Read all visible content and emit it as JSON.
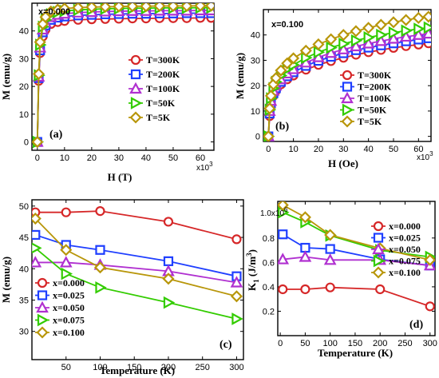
{
  "chart_data": [
    {
      "id": "a",
      "type": "line",
      "panel_label": "(a)",
      "annotation": "x=0.000",
      "xlabel": "H (T)",
      "ylabel": "M (emu/g)",
      "x_multiplier": "x10",
      "x_multiplier_exp": "3",
      "xlim": [
        -2000,
        65000
      ],
      "ylim": [
        -3,
        50
      ],
      "xticks": [
        0,
        10000,
        20000,
        30000,
        40000,
        50000,
        60000
      ],
      "xtick_labels": [
        "0",
        "10",
        "20",
        "30",
        "40",
        "50",
        "60"
      ],
      "yticks": [
        0,
        10,
        20,
        30,
        40
      ],
      "ytick_labels": [
        "0",
        "10",
        "20",
        "30",
        "40"
      ],
      "legend_position": "center-right",
      "series": [
        {
          "name": "T=300K",
          "color": "#d62728",
          "marker": "circle",
          "x": [
            0,
            500,
            1000,
            2000,
            3000,
            5000,
            7500,
            10000,
            15000,
            20000,
            25000,
            30000,
            35000,
            40000,
            45000,
            50000,
            55000,
            60000,
            64000
          ],
          "y": [
            0,
            22,
            32,
            38,
            40.5,
            42.5,
            43.2,
            43.6,
            44.0,
            44.2,
            44.3,
            44.4,
            44.5,
            44.5,
            44.6,
            44.6,
            44.6,
            44.7,
            44.7
          ]
        },
        {
          "name": "T=200K",
          "color": "#1f3fff",
          "marker": "square",
          "x": [
            0,
            500,
            1000,
            2000,
            3000,
            5000,
            7500,
            10000,
            15000,
            20000,
            25000,
            30000,
            35000,
            40000,
            45000,
            50000,
            55000,
            60000,
            64000
          ],
          "y": [
            0,
            23,
            33,
            39.5,
            42,
            44,
            44.8,
            45.2,
            45.6,
            45.8,
            46.0,
            46.1,
            46.2,
            46.2,
            46.3,
            46.3,
            46.4,
            46.4,
            46.4
          ]
        },
        {
          "name": "T=100K",
          "color": "#b030d0",
          "marker": "triangle-up",
          "x": [
            0,
            500,
            1000,
            2000,
            3000,
            5000,
            7500,
            10000,
            15000,
            20000,
            25000,
            30000,
            35000,
            40000,
            45000,
            50000,
            55000,
            60000,
            64000
          ],
          "y": [
            0,
            23.5,
            34,
            40.5,
            43,
            45,
            45.8,
            46.2,
            46.6,
            46.8,
            47.0,
            47.1,
            47.2,
            47.2,
            47.3,
            47.3,
            47.3,
            47.4,
            47.4
          ]
        },
        {
          "name": "T=50K",
          "color": "#33cc00",
          "marker": "triangle-right",
          "x": [
            0,
            500,
            1000,
            2000,
            3000,
            5000,
            7500,
            10000,
            15000,
            20000,
            25000,
            30000,
            35000,
            40000,
            45000,
            50000,
            55000,
            60000,
            64000
          ],
          "y": [
            0,
            24,
            35,
            41.5,
            44,
            46,
            46.8,
            47.2,
            47.6,
            47.8,
            48.0,
            48.1,
            48.2,
            48.2,
            48.3,
            48.3,
            48.3,
            48.4,
            48.4
          ]
        },
        {
          "name": "T=5K",
          "color": "#b8960a",
          "marker": "diamond",
          "x": [
            0,
            500,
            1000,
            2000,
            3000,
            5000,
            7500,
            10000,
            15000,
            20000,
            25000,
            30000,
            35000,
            40000,
            45000,
            50000,
            55000,
            60000,
            64000
          ],
          "y": [
            0,
            24.5,
            36,
            42.5,
            45,
            47,
            47.7,
            48.1,
            48.4,
            48.6,
            48.7,
            48.8,
            48.9,
            48.9,
            49.0,
            49.0,
            49.0,
            49.1,
            49.1
          ]
        }
      ]
    },
    {
      "id": "b",
      "type": "line",
      "panel_label": "(b)",
      "annotation": "x=0.100",
      "xlabel": "H (Oe)",
      "ylabel": "M (emu/g)",
      "x_multiplier": "x10",
      "x_multiplier_exp": "3",
      "xlim": [
        -2000,
        65000
      ],
      "ylim": [
        -2,
        50
      ],
      "xticks": [
        0,
        10000,
        20000,
        30000,
        40000,
        50000,
        60000
      ],
      "xtick_labels": [
        "0",
        "10",
        "20",
        "30",
        "40",
        "50",
        "60"
      ],
      "yticks": [
        0,
        10,
        20,
        30,
        40
      ],
      "ytick_labels": [
        "0",
        "10",
        "20",
        "30",
        "40"
      ],
      "legend_position": "center-right",
      "series": [
        {
          "name": "T=300K",
          "color": "#d62728",
          "marker": "circle",
          "x": [
            0,
            500,
            1000,
            2000,
            3000,
            5000,
            7500,
            10000,
            15000,
            20000,
            25000,
            30000,
            35000,
            40000,
            45000,
            50000,
            55000,
            60000,
            64000
          ],
          "y": [
            0,
            8,
            12,
            16,
            18,
            20.5,
            22.5,
            24,
            26.3,
            28.2,
            29.7,
            31,
            32.2,
            33.2,
            34.1,
            34.9,
            35.6,
            36.2,
            36.7
          ]
        },
        {
          "name": "T=200K",
          "color": "#1f3fff",
          "marker": "square",
          "x": [
            0,
            500,
            1000,
            2000,
            3000,
            5000,
            7500,
            10000,
            15000,
            20000,
            25000,
            30000,
            35000,
            40000,
            45000,
            50000,
            55000,
            60000,
            64000
          ],
          "y": [
            0,
            9,
            13,
            17,
            19,
            21.5,
            23.7,
            25.3,
            27.8,
            29.8,
            31.4,
            32.8,
            34,
            35,
            35.9,
            36.7,
            37.5,
            38.2,
            38.7
          ]
        },
        {
          "name": "T=100K",
          "color": "#b030d0",
          "marker": "triangle-up",
          "x": [
            0,
            500,
            1000,
            2000,
            3000,
            5000,
            7500,
            10000,
            15000,
            20000,
            25000,
            30000,
            35000,
            40000,
            45000,
            50000,
            55000,
            60000,
            64000
          ],
          "y": [
            0,
            10,
            14,
            18,
            20,
            22.5,
            24.8,
            26.5,
            29.1,
            31.2,
            32.9,
            34.3,
            35.5,
            36.6,
            37.6,
            38.5,
            39.3,
            40,
            40.5
          ]
        },
        {
          "name": "T=50K",
          "color": "#33cc00",
          "marker": "triangle-right",
          "x": [
            0,
            500,
            1000,
            2000,
            3000,
            5000,
            7500,
            10000,
            15000,
            20000,
            25000,
            30000,
            35000,
            40000,
            45000,
            50000,
            55000,
            60000,
            64000
          ],
          "y": [
            0,
            10.5,
            15,
            19,
            21.5,
            24,
            26.5,
            28.2,
            31,
            33.2,
            35,
            36.5,
            37.8,
            39,
            40,
            40.9,
            41.7,
            42.4,
            42.9
          ]
        },
        {
          "name": "T=5K",
          "color": "#b8960a",
          "marker": "diamond",
          "x": [
            0,
            500,
            1000,
            2000,
            3000,
            5000,
            7500,
            10000,
            15000,
            20000,
            25000,
            30000,
            35000,
            40000,
            45000,
            50000,
            55000,
            60000,
            64000
          ],
          "y": [
            0,
            11,
            16,
            20.5,
            23,
            26,
            28.8,
            30.8,
            33.8,
            36.3,
            38.3,
            40,
            41.5,
            42.8,
            44,
            45,
            45.9,
            46.7,
            47.2
          ]
        }
      ]
    },
    {
      "id": "c",
      "type": "line",
      "panel_label": "(c)",
      "xlabel": "Temperature (K)",
      "ylabel": "M (emu/g)",
      "xlim": [
        0,
        310
      ],
      "ylim": [
        25.5,
        51
      ],
      "xticks": [
        50,
        100,
        150,
        200,
        250,
        300
      ],
      "xtick_labels": [
        "50",
        "100",
        "150",
        "200",
        "250",
        "300"
      ],
      "yticks": [
        30,
        35,
        40,
        45,
        50
      ],
      "ytick_labels": [
        "30",
        "35",
        "40",
        "45",
        "50"
      ],
      "legend_position": "bottom-left",
      "series": [
        {
          "name": "x=0.000",
          "color": "#d62728",
          "marker": "circle",
          "x": [
            5,
            50,
            100,
            200,
            300
          ],
          "y": [
            49.0,
            49.0,
            49.2,
            47.5,
            44.7
          ]
        },
        {
          "name": "x=0.025",
          "color": "#1f3fff",
          "marker": "square",
          "x": [
            5,
            50,
            100,
            200,
            300
          ],
          "y": [
            45.4,
            43.8,
            43.0,
            41.2,
            38.8
          ]
        },
        {
          "name": "x=0.050",
          "color": "#b030d0",
          "marker": "triangle-up",
          "x": [
            5,
            50,
            100,
            200,
            300
          ],
          "y": [
            41.0,
            41.0,
            40.6,
            39.6,
            37.8
          ]
        },
        {
          "name": "x=0.075",
          "color": "#33cc00",
          "marker": "triangle-right",
          "x": [
            5,
            50,
            100,
            200,
            300
          ],
          "y": [
            43.3,
            39.2,
            37.0,
            34.6,
            32.0
          ]
        },
        {
          "name": "x=0.100",
          "color": "#b8960a",
          "marker": "diamond",
          "x": [
            5,
            50,
            100,
            200,
            300
          ],
          "y": [
            48.0,
            43.0,
            40.2,
            38.4,
            35.6
          ]
        }
      ]
    },
    {
      "id": "d",
      "type": "line",
      "panel_label": "(d)",
      "xlabel": "Temperature (K)",
      "ylabel": "K",
      "ylabel_sub": "1",
      "ylabel_units": " (J/m",
      "ylabel_units_exp": "3",
      "ylabel_units_end": ")",
      "y_multiplier": "1.0x10",
      "y_multiplier_exp": "6",
      "xlim": [
        -5,
        310
      ],
      "ylim": [
        0,
        1.1
      ],
      "xticks": [
        0,
        50,
        100,
        150,
        200,
        250,
        300
      ],
      "xtick_labels": [
        "0",
        "50",
        "100",
        "150",
        "200",
        "250",
        "300"
      ],
      "yticks": [
        0.2,
        0.4,
        0.6,
        0.8
      ],
      "ytick_labels": [
        "0.2",
        "0.4",
        "0.6",
        "0.8"
      ],
      "legend_position": "top-right",
      "series": [
        {
          "name": "x=0.000",
          "color": "#d62728",
          "marker": "circle",
          "x": [
            5,
            50,
            100,
            200,
            300
          ],
          "y": [
            0.38,
            0.38,
            0.395,
            0.38,
            0.24
          ]
        },
        {
          "name": "x=0.025",
          "color": "#1f3fff",
          "marker": "square",
          "x": [
            5,
            50,
            100,
            200,
            300
          ],
          "y": [
            0.83,
            0.72,
            0.71,
            0.625,
            0.575
          ]
        },
        {
          "name": "x=0.050",
          "color": "#b030d0",
          "marker": "triangle-up",
          "x": [
            5,
            50,
            100,
            200,
            300
          ],
          "y": [
            0.625,
            0.645,
            0.62,
            0.62,
            0.575
          ]
        },
        {
          "name": "x=0.075",
          "color": "#33cc00",
          "marker": "triangle-right",
          "x": [
            5,
            50,
            100,
            200,
            300
          ],
          "y": [
            1.01,
            0.93,
            0.82,
            0.7,
            0.645
          ]
        },
        {
          "name": "x=0.100",
          "color": "#b8960a",
          "marker": "diamond",
          "x": [
            5,
            50,
            100,
            200,
            300
          ],
          "y": [
            1.07,
            0.97,
            0.825,
            0.715,
            0.62
          ]
        }
      ]
    }
  ]
}
